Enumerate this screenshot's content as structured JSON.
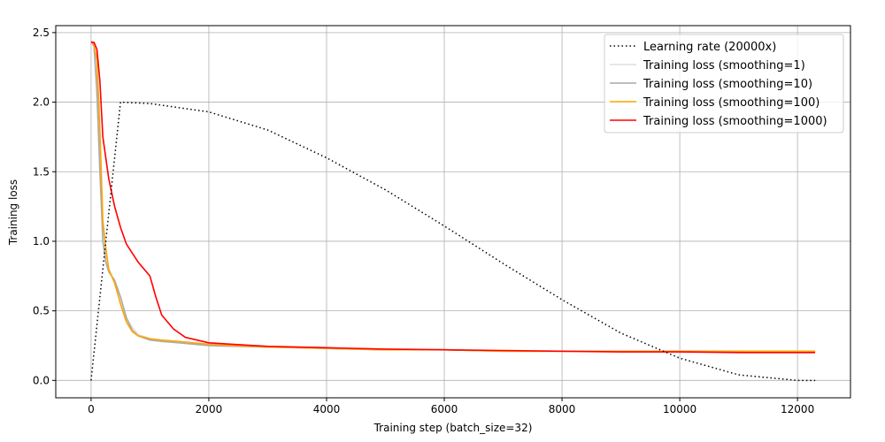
{
  "chart_data": {
    "type": "line",
    "title": "",
    "xlabel": "Training step (batch_size=32)",
    "ylabel": "Training loss",
    "xlim": [
      -600,
      12900
    ],
    "ylim": [
      -0.125,
      2.55
    ],
    "xticks": [
      0,
      2000,
      4000,
      6000,
      8000,
      10000,
      12000
    ],
    "yticks": [
      0.0,
      0.5,
      1.0,
      1.5,
      2.0,
      2.5
    ],
    "xtick_labels": [
      "0",
      "2000",
      "4000",
      "6000",
      "8000",
      "10000",
      "12000"
    ],
    "ytick_labels": [
      "0.0",
      "0.5",
      "1.0",
      "1.5",
      "2.0",
      "2.5"
    ],
    "grid": true,
    "legend_position": "top-right",
    "series": [
      {
        "name": "Learning rate (20000x)",
        "color": "#000000",
        "style": "dotted",
        "x": [
          0,
          500,
          1000,
          2000,
          3000,
          4000,
          5000,
          6000,
          7000,
          8000,
          9000,
          10000,
          11000,
          12000,
          12300
        ],
        "y": [
          0.0,
          2.0,
          1.99,
          1.93,
          1.8,
          1.6,
          1.37,
          1.11,
          0.84,
          0.58,
          0.34,
          0.16,
          0.04,
          0.0,
          0.0
        ]
      },
      {
        "name": "Training loss (smoothing=1)",
        "color": "#dddddd",
        "style": "solid",
        "x": [
          0,
          50,
          100,
          150,
          200,
          250,
          300,
          400,
          500,
          600,
          700,
          800,
          1000,
          1200,
          1500,
          2000,
          3000,
          4000,
          5000,
          6000,
          7000,
          8000,
          9000,
          10000,
          11000,
          12000,
          12300
        ],
        "y": [
          2.45,
          2.4,
          2.0,
          1.5,
          1.1,
          0.9,
          0.8,
          0.7,
          0.6,
          0.45,
          0.38,
          0.33,
          0.3,
          0.28,
          0.27,
          0.25,
          0.24,
          0.23,
          0.22,
          0.22,
          0.21,
          0.21,
          0.21,
          0.21,
          0.21,
          0.21,
          0.21
        ]
      },
      {
        "name": "Training loss (smoothing=10)",
        "color": "#aaaaaa",
        "style": "solid",
        "x": [
          0,
          50,
          100,
          150,
          200,
          250,
          300,
          400,
          500,
          600,
          700,
          800,
          1000,
          1200,
          1500,
          2000,
          3000,
          4000,
          5000,
          6000,
          7000,
          8000,
          9000,
          10000,
          11000,
          12000,
          12300
        ],
        "y": [
          2.44,
          2.4,
          2.1,
          1.5,
          1.0,
          0.85,
          0.78,
          0.72,
          0.6,
          0.45,
          0.36,
          0.32,
          0.29,
          0.28,
          0.27,
          0.25,
          0.24,
          0.23,
          0.22,
          0.22,
          0.21,
          0.21,
          0.21,
          0.21,
          0.21,
          0.21,
          0.21
        ]
      },
      {
        "name": "Training loss (smoothing=100)",
        "color": "#ffa500",
        "style": "solid",
        "x": [
          0,
          50,
          100,
          150,
          200,
          250,
          300,
          400,
          500,
          600,
          700,
          800,
          1000,
          1200,
          1500,
          2000,
          3000,
          4000,
          5000,
          6000,
          7000,
          8000,
          9000,
          10000,
          11000,
          12000,
          12300
        ],
        "y": [
          2.43,
          2.42,
          2.3,
          1.8,
          1.15,
          0.95,
          0.8,
          0.7,
          0.55,
          0.42,
          0.35,
          0.32,
          0.3,
          0.29,
          0.28,
          0.26,
          0.24,
          0.23,
          0.22,
          0.22,
          0.21,
          0.21,
          0.21,
          0.21,
          0.21,
          0.21,
          0.21
        ]
      },
      {
        "name": "Training loss (smoothing=1000)",
        "color": "#ff0000",
        "style": "solid",
        "x": [
          0,
          50,
          100,
          150,
          200,
          300,
          400,
          500,
          600,
          800,
          1000,
          1100,
          1200,
          1400,
          1600,
          2000,
          3000,
          4000,
          5000,
          6000,
          7000,
          8000,
          9000,
          10000,
          11000,
          12000,
          12300
        ],
        "y": [
          2.43,
          2.43,
          2.38,
          2.15,
          1.75,
          1.45,
          1.25,
          1.1,
          0.98,
          0.85,
          0.75,
          0.6,
          0.47,
          0.37,
          0.31,
          0.27,
          0.245,
          0.235,
          0.225,
          0.22,
          0.215,
          0.21,
          0.205,
          0.205,
          0.2,
          0.2,
          0.2
        ]
      }
    ]
  }
}
